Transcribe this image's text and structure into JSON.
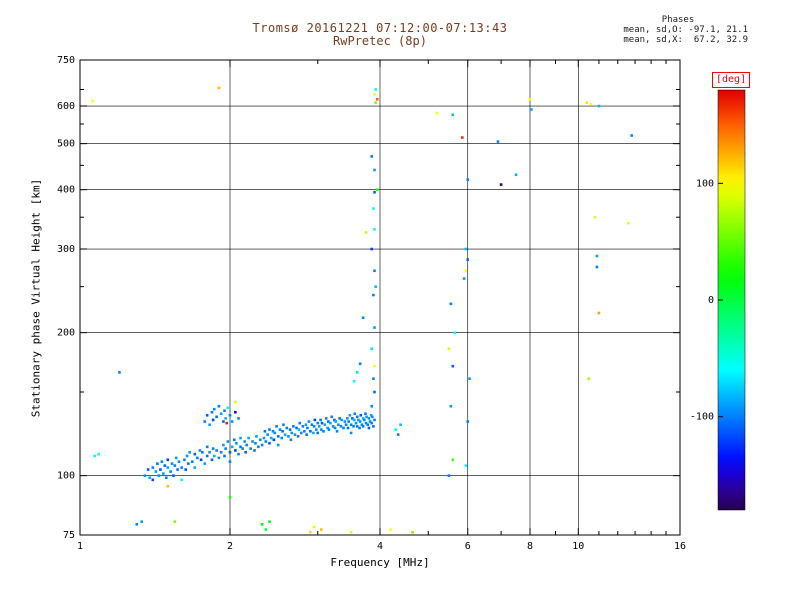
{
  "title": {
    "line1": "Tromsø 20161221 07:12:00-07:13:43",
    "line2": "RwPretec (8p)"
  },
  "stats": {
    "header": "Phases",
    "line_o": "mean, sd,O: -97.1, 21.1",
    "line_x": "mean, sd,X:  67.2, 32.9"
  },
  "chart_data": {
    "type": "scatter",
    "title": "Tromsø 20161221 07:12:00-07:13:43  RwPretec (8p)",
    "xlabel": "Frequency [MHz]",
    "ylabel": "Stationary phase Virtual Height [km]",
    "x_scale": "log",
    "y_scale": "log",
    "xlim": [
      1,
      16
    ],
    "ylim": [
      75,
      750
    ],
    "x_ticks": [
      1,
      2,
      4,
      6,
      8,
      10,
      16
    ],
    "x_minor_ticks": [
      3,
      5,
      7,
      9,
      11,
      12,
      13,
      14,
      15
    ],
    "y_ticks": [
      75,
      100,
      200,
      300,
      400,
      500,
      600,
      750
    ],
    "y_minor_ticks": [
      150,
      250,
      350,
      450,
      550,
      650
    ],
    "grid_x": [
      2,
      4,
      6,
      8,
      10
    ],
    "grid_y": [
      100,
      200,
      300,
      400,
      500,
      600
    ],
    "grid": true,
    "colorbar": {
      "label": "[deg]",
      "ticks": [
        100,
        0,
        -100
      ],
      "range": [
        -180,
        180
      ],
      "colormap": "rainbow",
      "position": "right"
    },
    "point_fields": [
      "frequency_mhz",
      "virtual_height_km",
      "phase_deg"
    ],
    "points": [
      [
        1.35,
        100,
        -95
      ],
      [
        1.37,
        103,
        -110
      ],
      [
        1.38,
        99,
        -85
      ],
      [
        1.4,
        104,
        -100
      ],
      [
        1.4,
        98,
        -120
      ],
      [
        1.42,
        102,
        -90
      ],
      [
        1.43,
        106,
        -105
      ],
      [
        1.44,
        100,
        -95
      ],
      [
        1.45,
        103,
        -115
      ],
      [
        1.46,
        107,
        -100
      ],
      [
        1.47,
        101,
        -90
      ],
      [
        1.48,
        105,
        -110
      ],
      [
        1.49,
        99,
        -100
      ],
      [
        1.5,
        104,
        -85
      ],
      [
        1.5,
        108,
        -120
      ],
      [
        1.52,
        102,
        -100
      ],
      [
        1.53,
        106,
        -95
      ],
      [
        1.54,
        100,
        -110
      ],
      [
        1.55,
        105,
        -100
      ],
      [
        1.56,
        109,
        -90
      ],
      [
        1.57,
        103,
        -105
      ],
      [
        1.58,
        107,
        -95
      ],
      [
        1.6,
        104,
        -100
      ],
      [
        1.6,
        98,
        -60
      ],
      [
        1.62,
        108,
        -100
      ],
      [
        1.63,
        103,
        -115
      ],
      [
        1.64,
        110,
        -95
      ],
      [
        1.65,
        106,
        -105
      ],
      [
        1.66,
        112,
        -90
      ],
      [
        1.68,
        107,
        -100
      ],
      [
        1.7,
        111,
        -110
      ],
      [
        1.7,
        104,
        -85
      ],
      [
        1.72,
        109,
        -100
      ],
      [
        1.74,
        113,
        -95
      ],
      [
        1.75,
        108,
        -120
      ],
      [
        1.76,
        112,
        -100
      ],
      [
        1.78,
        106,
        -90
      ],
      [
        1.8,
        110,
        -105
      ],
      [
        1.8,
        115,
        -100
      ],
      [
        1.82,
        112,
        -95
      ],
      [
        1.84,
        108,
        -110
      ],
      [
        1.85,
        114,
        -100
      ],
      [
        1.86,
        110,
        -85
      ],
      [
        1.88,
        113,
        -100
      ],
      [
        1.9,
        109,
        -95
      ],
      [
        1.78,
        130,
        -100
      ],
      [
        1.8,
        134,
        -110
      ],
      [
        1.82,
        128,
        -90
      ],
      [
        1.84,
        136,
        -100
      ],
      [
        1.85,
        131,
        -120
      ],
      [
        1.86,
        138,
        -95
      ],
      [
        1.88,
        133,
        -105
      ],
      [
        1.9,
        140,
        -100
      ],
      [
        1.92,
        135,
        -90
      ],
      [
        1.94,
        130,
        -110
      ],
      [
        1.95,
        137,
        -100
      ],
      [
        1.96,
        132,
        -85
      ],
      [
        1.97,
        129,
        170
      ],
      [
        1.98,
        139,
        -55
      ],
      [
        2.0,
        134,
        -100
      ],
      [
        2.02,
        130,
        -95
      ],
      [
        2.05,
        136,
        -150
      ],
      [
        2.05,
        143,
        90
      ],
      [
        2.08,
        132,
        -100
      ],
      [
        1.92,
        112,
        -100
      ],
      [
        1.94,
        116,
        -90
      ],
      [
        1.95,
        110,
        -105
      ],
      [
        1.96,
        114,
        -100
      ],
      [
        1.98,
        118,
        -95
      ],
      [
        2.0,
        112,
        -110
      ],
      [
        2.0,
        107,
        -100
      ],
      [
        2.02,
        115,
        -85
      ],
      [
        2.04,
        119,
        -100
      ],
      [
        2.05,
        113,
        -120
      ],
      [
        2.06,
        117,
        -95
      ],
      [
        2.08,
        111,
        -100
      ],
      [
        2.1,
        115,
        -105
      ],
      [
        2.1,
        120,
        -90
      ],
      [
        2.12,
        114,
        -100
      ],
      [
        2.14,
        118,
        -95
      ],
      [
        2.15,
        112,
        -110
      ],
      [
        2.16,
        116,
        -100
      ],
      [
        2.18,
        120,
        -85
      ],
      [
        2.2,
        114,
        -100
      ],
      [
        2.22,
        118,
        -95
      ],
      [
        2.24,
        113,
        -105
      ],
      [
        2.25,
        117,
        -100
      ],
      [
        2.26,
        121,
        -90
      ],
      [
        2.28,
        115,
        -100
      ],
      [
        2.3,
        119,
        -95
      ],
      [
        2.32,
        116,
        -100
      ],
      [
        2.34,
        120,
        -90
      ],
      [
        2.35,
        124,
        -105
      ],
      [
        2.36,
        118,
        -100
      ],
      [
        2.38,
        122,
        -95
      ],
      [
        2.4,
        117,
        -110
      ],
      [
        2.4,
        125,
        -100
      ],
      [
        2.42,
        120,
        -85
      ],
      [
        2.44,
        124,
        -100
      ],
      [
        2.45,
        119,
        -120
      ],
      [
        2.46,
        123,
        -95
      ],
      [
        2.48,
        127,
        -100
      ],
      [
        2.5,
        121,
        -105
      ],
      [
        2.5,
        116,
        -90
      ],
      [
        2.52,
        125,
        -100
      ],
      [
        2.54,
        120,
        -95
      ],
      [
        2.55,
        124,
        -110
      ],
      [
        2.56,
        128,
        -100
      ],
      [
        2.58,
        122,
        -85
      ],
      [
        2.6,
        126,
        -100
      ],
      [
        2.62,
        121,
        -95
      ],
      [
        2.64,
        125,
        -105
      ],
      [
        2.65,
        119,
        -100
      ],
      [
        2.66,
        123,
        -90
      ],
      [
        2.68,
        127,
        -100
      ],
      [
        2.7,
        122,
        -95
      ],
      [
        2.72,
        126,
        -110
      ],
      [
        2.74,
        121,
        -100
      ],
      [
        2.75,
        125,
        -85
      ],
      [
        2.76,
        129,
        -100
      ],
      [
        2.78,
        123,
        -95
      ],
      [
        2.8,
        127,
        -100
      ],
      [
        2.82,
        124,
        -100
      ],
      [
        2.84,
        128,
        -90
      ],
      [
        2.85,
        122,
        -105
      ],
      [
        2.86,
        126,
        -100
      ],
      [
        2.88,
        130,
        -95
      ],
      [
        2.9,
        124,
        -110
      ],
      [
        2.92,
        128,
        -100
      ],
      [
        2.94,
        123,
        -85
      ],
      [
        2.95,
        127,
        -100
      ],
      [
        2.96,
        131,
        -120
      ],
      [
        2.98,
        125,
        -95
      ],
      [
        3.0,
        129,
        -100
      ],
      [
        3.0,
        123,
        -105
      ],
      [
        3.02,
        127,
        -90
      ],
      [
        3.04,
        131,
        -100
      ],
      [
        3.05,
        125,
        -95
      ],
      [
        3.06,
        129,
        -110
      ],
      [
        3.08,
        124,
        -100
      ],
      [
        3.1,
        128,
        -85
      ],
      [
        3.12,
        132,
        -100
      ],
      [
        3.14,
        126,
        -95
      ],
      [
        3.15,
        130,
        -105
      ],
      [
        3.16,
        125,
        -100
      ],
      [
        3.18,
        129,
        -90
      ],
      [
        3.2,
        133,
        -100
      ],
      [
        3.22,
        127,
        -95
      ],
      [
        3.24,
        131,
        -110
      ],
      [
        3.25,
        126,
        -100
      ],
      [
        3.26,
        130,
        -85
      ],
      [
        3.28,
        124,
        -100
      ],
      [
        3.3,
        128,
        -95
      ],
      [
        3.32,
        132,
        -105
      ],
      [
        3.34,
        127,
        -100
      ],
      [
        3.35,
        131,
        -90
      ],
      [
        3.38,
        126,
        -100
      ],
      [
        3.4,
        130,
        -95
      ],
      [
        3.42,
        128,
        -100
      ],
      [
        3.44,
        132,
        -95
      ],
      [
        3.45,
        126,
        -105
      ],
      [
        3.46,
        130,
        -100
      ],
      [
        3.48,
        134,
        -90
      ],
      [
        3.5,
        128,
        -100
      ],
      [
        3.5,
        123,
        -95
      ],
      [
        3.52,
        132,
        -110
      ],
      [
        3.54,
        127,
        -100
      ],
      [
        3.55,
        131,
        -85
      ],
      [
        3.56,
        135,
        -100
      ],
      [
        3.58,
        129,
        -95
      ],
      [
        3.6,
        133,
        -105
      ],
      [
        3.6,
        127,
        -100
      ],
      [
        3.62,
        131,
        -90
      ],
      [
        3.64,
        126,
        -100
      ],
      [
        3.65,
        130,
        -95
      ],
      [
        3.66,
        134,
        -110
      ],
      [
        3.68,
        128,
        -100
      ],
      [
        3.7,
        132,
        -85
      ],
      [
        3.7,
        127,
        -100
      ],
      [
        3.72,
        131,
        -95
      ],
      [
        3.74,
        135,
        -105
      ],
      [
        3.75,
        129,
        -100
      ],
      [
        3.76,
        133,
        -90
      ],
      [
        3.78,
        128,
        -100
      ],
      [
        3.8,
        132,
        -95
      ],
      [
        3.8,
        126,
        -110
      ],
      [
        3.82,
        130,
        -100
      ],
      [
        3.84,
        134,
        -85
      ],
      [
        3.85,
        129,
        -100
      ],
      [
        3.86,
        133,
        -95
      ],
      [
        3.88,
        127,
        -105
      ],
      [
        3.9,
        131,
        -100
      ],
      [
        3.55,
        158,
        -60
      ],
      [
        3.6,
        165,
        -70
      ],
      [
        3.65,
        172,
        -100
      ],
      [
        3.7,
        215,
        -95
      ],
      [
        4.3,
        125,
        -60
      ],
      [
        4.4,
        128,
        -80
      ],
      [
        4.35,
        122,
        -100
      ],
      [
        1.07,
        110,
        -55
      ],
      [
        1.09,
        111,
        -60
      ],
      [
        1.2,
        165,
        -100
      ],
      [
        1.3,
        79,
        -100
      ],
      [
        1.33,
        80,
        -90
      ],
      [
        1.5,
        95,
        120
      ],
      [
        1.55,
        80,
        60
      ],
      [
        2.0,
        90,
        30
      ],
      [
        2.32,
        79,
        20
      ],
      [
        2.36,
        77,
        -5
      ],
      [
        2.4,
        80,
        15
      ],
      [
        2.9,
        76,
        110
      ],
      [
        2.95,
        78,
        95
      ],
      [
        3.05,
        77,
        120
      ],
      [
        3.5,
        76,
        105
      ],
      [
        4.65,
        76,
        60
      ],
      [
        4.2,
        77,
        100
      ],
      [
        1.06,
        615,
        100
      ],
      [
        1.9,
        655,
        120
      ],
      [
        3.95,
        620,
        150
      ],
      [
        3.9,
        635,
        100
      ],
      [
        3.92,
        610,
        60
      ],
      [
        3.92,
        650,
        -60
      ],
      [
        3.85,
        470,
        -100
      ],
      [
        3.9,
        440,
        -90
      ],
      [
        3.95,
        400,
        30
      ],
      [
        3.9,
        395,
        -110
      ],
      [
        3.88,
        365,
        -60
      ],
      [
        3.9,
        330,
        -60
      ],
      [
        3.75,
        325,
        85
      ],
      [
        3.85,
        300,
        -120
      ],
      [
        3.9,
        270,
        -100
      ],
      [
        3.92,
        250,
        -80
      ],
      [
        3.88,
        240,
        -100
      ],
      [
        3.9,
        205,
        -90
      ],
      [
        3.85,
        185,
        -70
      ],
      [
        3.9,
        170,
        100
      ],
      [
        3.88,
        160,
        -100
      ],
      [
        3.9,
        150,
        -110
      ],
      [
        3.85,
        140,
        -95
      ],
      [
        5.2,
        580,
        100
      ],
      [
        5.6,
        575,
        -80
      ],
      [
        5.85,
        515,
        165
      ],
      [
        5.5,
        100,
        -100
      ],
      [
        5.6,
        108,
        40
      ],
      [
        5.55,
        140,
        -90
      ],
      [
        5.6,
        170,
        -110
      ],
      [
        5.5,
        185,
        90
      ],
      [
        5.65,
        200,
        -60
      ],
      [
        5.55,
        230,
        -100
      ],
      [
        5.95,
        105,
        -60
      ],
      [
        6.0,
        130,
        -100
      ],
      [
        6.05,
        160,
        -90
      ],
      [
        5.9,
        260,
        -90
      ],
      [
        5.95,
        270,
        100
      ],
      [
        6.0,
        285,
        -110
      ],
      [
        5.95,
        300,
        -80
      ],
      [
        6.0,
        420,
        -100
      ],
      [
        6.9,
        505,
        -100
      ],
      [
        7.0,
        410,
        -175
      ],
      [
        7.5,
        430,
        -85
      ],
      [
        8.0,
        620,
        100
      ],
      [
        8.05,
        590,
        -90
      ],
      [
        10.4,
        610,
        110
      ],
      [
        10.6,
        605,
        100
      ],
      [
        11.0,
        600,
        -80
      ],
      [
        10.5,
        160,
        70
      ],
      [
        10.8,
        350,
        90
      ],
      [
        10.9,
        290,
        -90
      ],
      [
        10.9,
        275,
        -100
      ],
      [
        11.0,
        220,
        130
      ],
      [
        12.8,
        520,
        -100
      ],
      [
        12.6,
        340,
        95
      ]
    ]
  }
}
